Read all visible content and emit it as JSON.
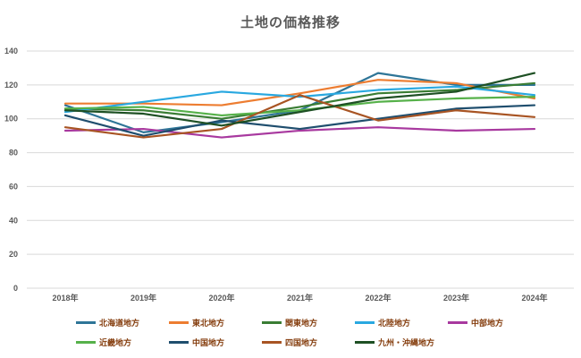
{
  "title": "土地の価格推移",
  "colors": {
    "background": "#ffffff",
    "title_text": "#595959",
    "axis_text": "#595959",
    "gridline": "#d9d9d9",
    "legend_text": "#843c0c"
  },
  "chart_data": {
    "type": "line",
    "title": "土地の価格推移",
    "categories": [
      "2018年",
      "2019年",
      "2020年",
      "2021年",
      "2022年",
      "2023年",
      "2024年"
    ],
    "y_ticks": [
      0,
      20,
      40,
      60,
      80,
      100,
      120,
      140
    ],
    "ylim": [
      0,
      140
    ],
    "xlabel": "",
    "ylabel": "",
    "grid": "horizontal",
    "legend_position": "bottom",
    "series": [
      {
        "name": "北海道地方",
        "color": "#2e7597",
        "values": [
          108,
          92,
          98,
          105,
          127,
          120,
          120
        ]
      },
      {
        "name": "東北地方",
        "color": "#ed7d31",
        "values": [
          109,
          109,
          108,
          115,
          123,
          121,
          112
        ]
      },
      {
        "name": "関東地方",
        "color": "#3a7d34",
        "values": [
          106,
          105,
          100,
          107,
          115,
          117,
          121
        ]
      },
      {
        "name": "北陸地方",
        "color": "#29a8e0",
        "values": [
          104,
          110,
          116,
          113,
          117,
          119,
          114
        ]
      },
      {
        "name": "中部地方",
        "color": "#a8399f",
        "values": [
          93,
          94,
          89,
          93,
          95,
          93,
          94
        ]
      },
      {
        "name": "近畿地方",
        "color": "#56b14a",
        "values": [
          106,
          107,
          102,
          105,
          110,
          112,
          113
        ]
      },
      {
        "name": "中国地方",
        "color": "#1f4e6e",
        "values": [
          102,
          90,
          99,
          94,
          100,
          106,
          108
        ]
      },
      {
        "name": "四国地方",
        "color": "#a85423",
        "values": [
          95,
          89,
          94,
          114,
          99,
          105,
          101
        ]
      },
      {
        "name": "九州・沖縄地方",
        "color": "#1e5024",
        "values": [
          105,
          103,
          96,
          104,
          112,
          116,
          127
        ]
      }
    ]
  }
}
